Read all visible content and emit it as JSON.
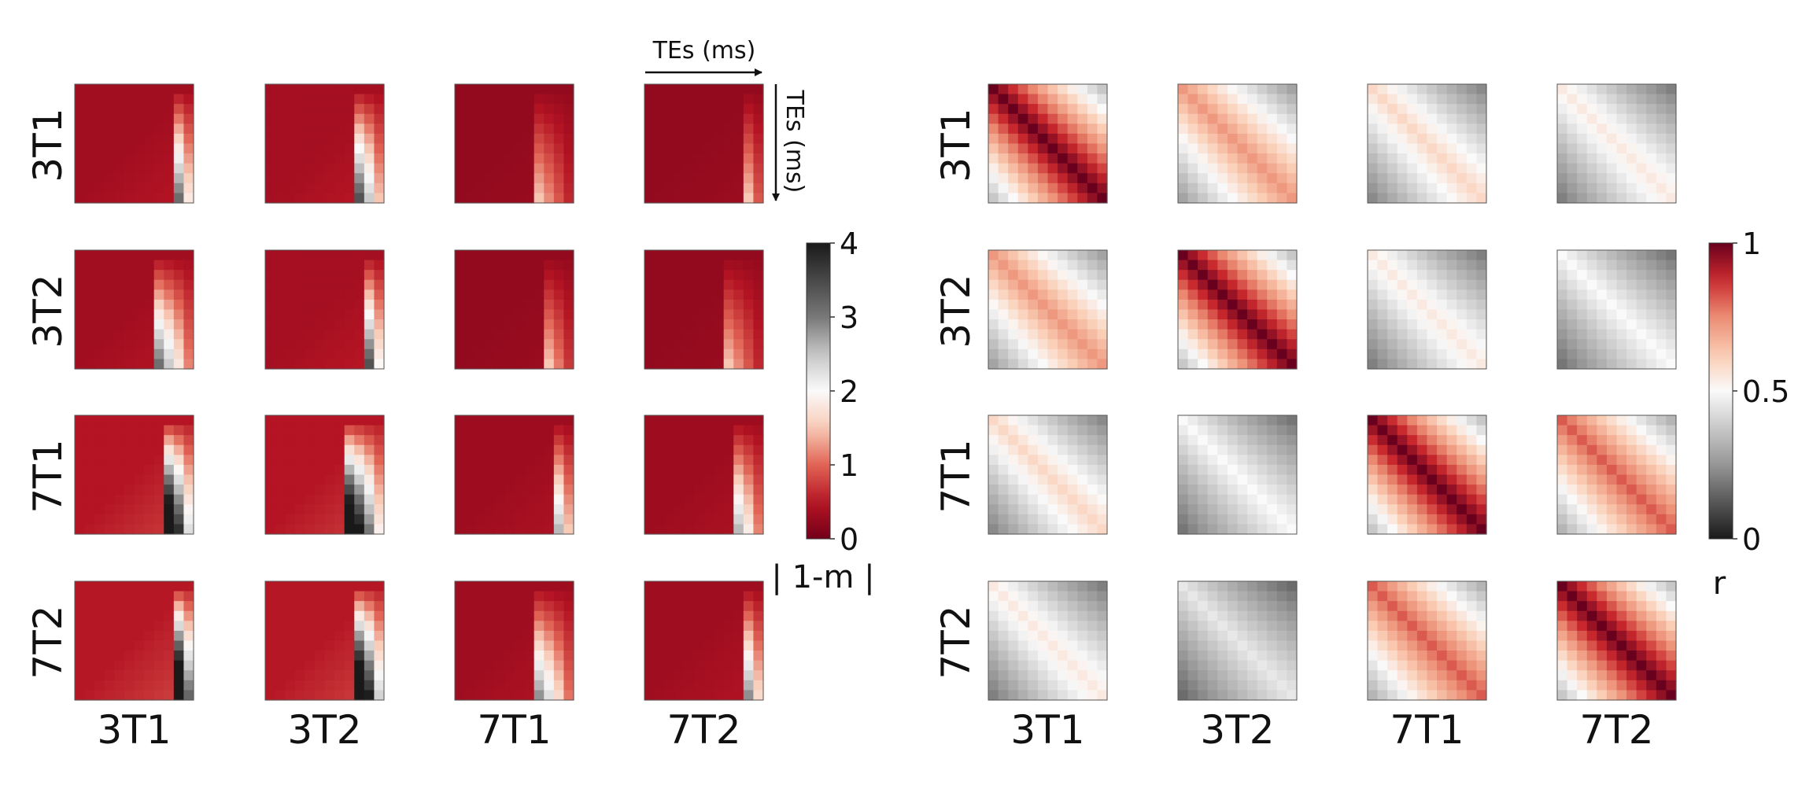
{
  "chart_data": {
    "type": "heatmap",
    "grid_size": 12,
    "rows": [
      "3T1",
      "3T2",
      "7T1",
      "7T2"
    ],
    "cols": [
      "3T1",
      "3T2",
      "7T1",
      "7T2"
    ],
    "annotations": {
      "horizontal_arrow_label": "TEs (ms)",
      "vertical_arrow_label": "TEs (ms)"
    },
    "panels": [
      {
        "id": "left",
        "metric": "abs_one_minus_m",
        "colorbar": {
          "label": "| 1-m |",
          "range": [
            0,
            4
          ],
          "ticks": [
            "0",
            "1",
            "2",
            "3",
            "4"
          ]
        },
        "severity": [
          [
            0.55,
            0.6,
            0.25,
            0.25
          ],
          [
            0.55,
            0.6,
            0.25,
            0.25
          ],
          [
            0.95,
            0.95,
            0.45,
            0.45
          ],
          [
            1.0,
            1.0,
            0.5,
            0.5
          ]
        ]
      },
      {
        "id": "right",
        "metric": "r",
        "colorbar": {
          "label": "r",
          "range": [
            0,
            1
          ],
          "ticks": [
            "0",
            "0.5",
            "1"
          ]
        },
        "similarity": [
          [
            1.0,
            0.75,
            0.6,
            0.55
          ],
          [
            0.75,
            1.0,
            0.55,
            0.5
          ],
          [
            0.6,
            0.5,
            1.0,
            0.85
          ],
          [
            0.55,
            0.45,
            0.85,
            1.0
          ]
        ]
      }
    ]
  }
}
